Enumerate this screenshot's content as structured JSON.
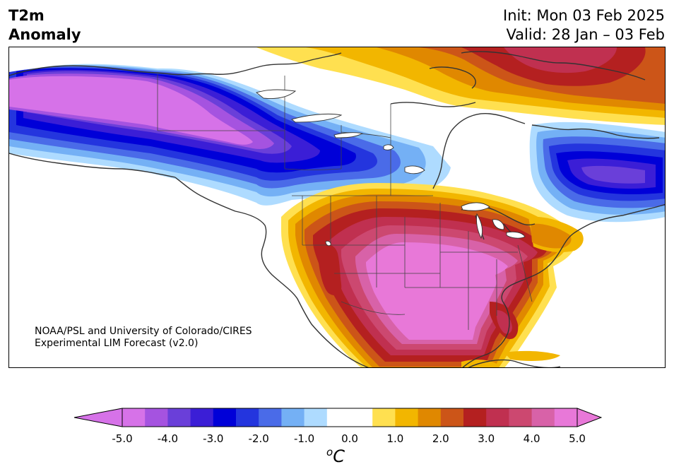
{
  "header": {
    "title_line1": "T2m",
    "title_line2": "Anomaly",
    "init": "Init: Mon 03 Feb 2025",
    "valid": "Valid: 28 Jan – 03 Feb"
  },
  "credit": {
    "line1": "NOAA/PSL and University of Colorado/CIRES",
    "line2": "Experimental LIM Forecast (v2.0)"
  },
  "colorbar": {
    "unit": "C",
    "unit_prefix": "o",
    "ticks": [
      "-5.0",
      "-4.0",
      "-3.0",
      "-2.0",
      "-1.0",
      "0.0",
      "1.0",
      "2.0",
      "3.0",
      "4.0",
      "5.0"
    ],
    "colors": [
      "#d672e8",
      "#a553e0",
      "#6a3fd9",
      "#3b1ed6",
      "#0000d8",
      "#2435de",
      "#4a6be8",
      "#74b0f5",
      "#aedbff",
      "#ffffff",
      "#ffffff",
      "#ffe050",
      "#f2b600",
      "#e08800",
      "#cc5518",
      "#b42020",
      "#c03050",
      "#cc4870",
      "#d862a8",
      "#e878d8"
    ],
    "under_color": "#d672e8",
    "over_color": "#e878d8"
  },
  "map": {
    "region": "North America",
    "colors": {
      "cold_extreme": "#d672e8",
      "cold_core": "#0000d8",
      "cold_mid": "#4a6be8",
      "cold_light": "#aedbff",
      "warm_light": "#ffe050",
      "warm_mid": "#e08800",
      "warm_core": "#b42020",
      "warm_extreme": "#e878d8"
    }
  }
}
